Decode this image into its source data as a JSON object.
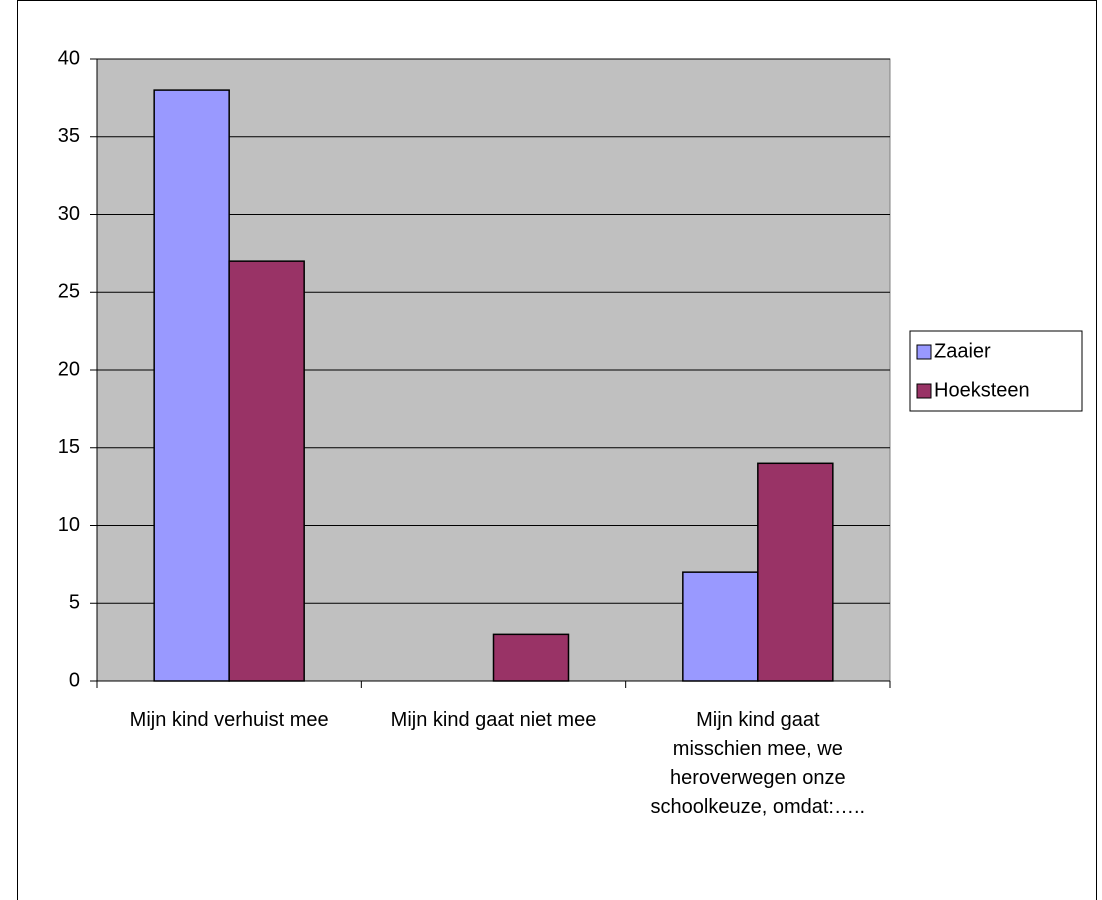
{
  "chart_data": {
    "type": "bar",
    "categories": [
      "Mijn kind verhuist mee",
      "Mijn kind gaat niet mee",
      "Mijn kind gaat misschien mee, we heroverwegen onze schoolkeuze, omdat:….."
    ],
    "series": [
      {
        "name": "Zaaier",
        "color": "#9999ff",
        "values": [
          38,
          0,
          7
        ]
      },
      {
        "name": "Hoeksteen",
        "color": "#993366",
        "values": [
          27,
          3,
          14
        ]
      }
    ],
    "ylim": [
      0,
      40
    ],
    "yticks": [
      0,
      5,
      10,
      15,
      20,
      25,
      30,
      35,
      40
    ],
    "grid": true,
    "legend": "right"
  }
}
